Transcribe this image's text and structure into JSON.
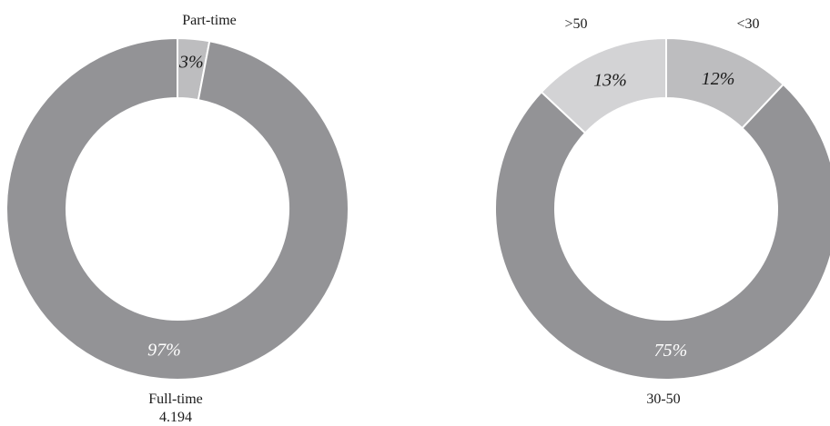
{
  "chart_data": [
    {
      "type": "pie",
      "donut": true,
      "categories": [
        "Part-time",
        "Full-time"
      ],
      "values": [
        3,
        97
      ],
      "value_labels": [
        "3%",
        "97%"
      ],
      "colors": [
        "#bdbdbf",
        "#939396"
      ],
      "category_labels": {
        "Part-time": "Part-time",
        "Full-time": "Full-time"
      },
      "annotations": {
        "Full-time": "4.194"
      }
    },
    {
      "type": "pie",
      "donut": true,
      "categories": [
        "<30",
        "30-50",
        ">50"
      ],
      "values": [
        12,
        75,
        13
      ],
      "value_labels": [
        "12%",
        "75%",
        "13%"
      ],
      "colors": [
        "#bdbdbf",
        "#939396",
        "#d3d3d5"
      ],
      "category_labels": {
        "<30": "<30",
        "30-50": "30-50",
        ">50": ">50"
      }
    }
  ]
}
